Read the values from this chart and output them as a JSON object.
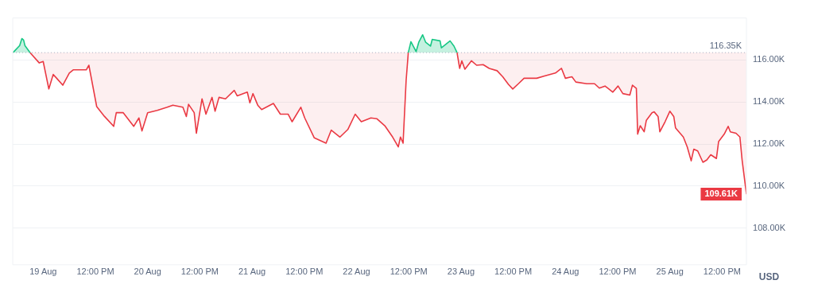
{
  "chart_data": {
    "type": "line",
    "xlim": [
      "--08-18T17:00",
      "--08-25T17:36"
    ],
    "xticks": [
      {
        "value": "--08-19T00:00",
        "label": "19 Aug"
      },
      {
        "value": "--08-19T12:00",
        "label": "12:00 PM"
      },
      {
        "value": "--08-20T00:00",
        "label": "20 Aug"
      },
      {
        "value": "--08-20T12:00",
        "label": "12:00 PM"
      },
      {
        "value": "--08-21T00:00",
        "label": "21 Aug"
      },
      {
        "value": "--08-21T12:00",
        "label": "12:00 PM"
      },
      {
        "value": "--08-22T00:00",
        "label": "22 Aug"
      },
      {
        "value": "--08-22T12:00",
        "label": "12:00 PM"
      },
      {
        "value": "--08-23T00:00",
        "label": "23 Aug"
      },
      {
        "value": "--08-23T12:00",
        "label": "12:00 PM"
      },
      {
        "value": "--08-24T00:00",
        "label": "24 Aug"
      },
      {
        "value": "--08-24T12:00",
        "label": "12:00 PM"
      },
      {
        "value": "--08-25T00:00",
        "label": "25 Aug"
      },
      {
        "value": "--08-25T12:00",
        "label": "12:00 PM"
      }
    ],
    "ylim": [
      106250,
      118000
    ],
    "yticks": [
      {
        "value": 108000,
        "label": "108.00K"
      },
      {
        "value": 110000,
        "label": "110.00K"
      },
      {
        "value": 112000,
        "label": "112.00K"
      },
      {
        "value": 114000,
        "label": "114.00K"
      },
      {
        "value": 116000,
        "label": "116.00K"
      }
    ],
    "ylabel": "USD",
    "grid": "y",
    "legend": false,
    "marker": "none",
    "line_style": "solid",
    "ref_lines": [
      {
        "axis": "y",
        "value": 116350,
        "label": "116.35K",
        "color": "#a6b0c3",
        "line_style": "dotted"
      }
    ],
    "annotations": [
      {
        "text": "109.61K",
        "x": "--08-25T17:36",
        "y": 109610
      }
    ],
    "series": [
      {
        "color": "#16c784",
        "x": [
          "--08-18T17:06",
          "--08-18T18:36",
          "--08-18T19:06",
          "--08-18T19:30",
          "--08-18T19:48",
          "--08-18T21:00",
          "--08-20T16:00",
          "--08-22T11:54",
          "--08-22T12:30",
          "--08-22T13:42",
          "--08-22T14:18",
          "--08-22T15:12",
          "--08-22T15:54",
          "--08-22T17:00",
          "--08-22T17:24",
          "--08-22T19:12",
          "--08-22T19:30",
          "--08-22T21:30",
          "--08-22T22:24",
          "--08-22T23:06"
        ],
        "values": [
          116360,
          116690,
          117020,
          116950,
          116690,
          116350,
          null,
          116350,
          116870,
          116400,
          116840,
          117200,
          116840,
          116660,
          116980,
          116910,
          116580,
          116910,
          116660,
          116350
        ]
      },
      {
        "color": "#ea3943",
        "x": [
          "--08-18T21:00",
          "--08-18T23:06",
          "--08-19T00:00",
          "--08-19T01:18",
          "--08-19T02:18",
          "--08-19T03:06",
          "--08-19T04:30",
          "--08-19T06:00",
          "--08-19T06:54",
          "--08-19T09:54",
          "--08-19T10:30",
          "--08-19T12:18",
          "--08-19T14:06",
          "--08-19T16:12",
          "--08-19T16:48",
          "--08-19T18:24",
          "--08-19T20:48",
          "--08-19T22:00",
          "--08-19T22:42",
          "--08-20T00:00",
          "--08-20T02:12",
          "--08-20T04:30",
          "--08-20T05:48",
          "--08-20T08:06",
          "--08-20T08:54",
          "--08-20T09:24",
          "--08-20T10:42",
          "--08-20T11:12",
          "--08-20T12:30",
          "--08-20T13:24",
          "--08-20T14:48",
          "--08-20T15:30",
          "--08-20T16:24",
          "--08-20T17:54",
          "--08-20T19:54",
          "--08-20T20:36",
          "--08-20T22:54",
          "--08-20T23:30",
          "--08-21T00:12",
          "--08-21T01:18",
          "--08-21T02:12",
          "--08-21T04:54",
          "--08-21T06:30",
          "--08-21T08:18",
          "--08-21T09:12",
          "--08-21T11:12",
          "--08-21T12:06",
          "--08-21T14:18",
          "--08-21T17:00",
          "--08-21T18:12",
          "--08-21T20:12",
          "--08-21T22:00",
          "--08-21T23:42",
          "--08-22T01:06",
          "--08-22T03:18",
          "--08-22T04:42",
          "--08-22T06:30",
          "--08-22T08:18",
          "--08-22T09:36",
          "--08-22T10:06",
          "--08-22T10:42",
          "--08-22T11:24",
          "--08-22T11:54",
          "--08-22T17:00",
          "--08-22T23:06",
          "--08-22T23:42",
          "--08-23T00:12",
          "--08-23T00:54",
          "--08-23T02:24",
          "--08-23T03:36",
          "--08-23T05:06",
          "--08-23T06:30",
          "--08-23T08:18",
          "--08-23T09:36",
          "--08-23T10:54",
          "--08-23T11:54",
          "--08-23T13:12",
          "--08-23T14:30",
          "--08-23T17:24",
          "--08-23T19:12",
          "--08-23T21:42",
          "--08-23T23:06",
          "--08-24T00:00",
          "--08-24T01:30",
          "--08-24T02:24",
          "--08-24T04:54",
          "--08-24T06:42",
          "--08-24T07:48",
          "--08-24T09:06",
          "--08-24T10:54",
          "--08-24T12:06",
          "--08-24T13:12",
          "--08-24T14:48",
          "--08-24T15:24",
          "--08-24T16:18",
          "--08-24T16:36",
          "--08-24T17:12",
          "--08-24T18:06",
          "--08-24T18:36",
          "--08-24T19:54",
          "--08-24T20:24",
          "--08-24T21:18",
          "--08-24T21:42",
          "--08-24T22:54",
          "--08-25T00:00",
          "--08-25T00:54",
          "--08-25T01:18",
          "--08-25T03:06",
          "--08-25T04:00",
          "--08-25T04:54",
          "--08-25T05:30",
          "--08-25T06:24",
          "--08-25T07:36",
          "--08-25T08:30",
          "--08-25T09:24",
          "--08-25T10:42",
          "--08-25T11:12",
          "--08-25T12:30",
          "--08-25T13:24",
          "--08-25T13:54",
          "--08-25T15:12",
          "--08-25T16:06",
          "--08-25T16:36",
          "--08-25T17:36"
        ],
        "values": [
          116350,
          115860,
          115930,
          114620,
          115310,
          115130,
          114800,
          115380,
          115530,
          115530,
          115750,
          113780,
          113310,
          112840,
          113490,
          113490,
          112840,
          113240,
          112620,
          113490,
          113600,
          113750,
          113850,
          113750,
          113310,
          113890,
          113490,
          112510,
          114150,
          113420,
          114220,
          113560,
          114220,
          114150,
          114550,
          114290,
          114470,
          113960,
          114400,
          113850,
          113640,
          113930,
          113420,
          113420,
          113060,
          113750,
          113240,
          112290,
          112040,
          112660,
          112330,
          112690,
          113420,
          113060,
          113240,
          113200,
          112870,
          112330,
          111860,
          112330,
          112040,
          115020,
          116350,
          null,
          116350,
          115600,
          115960,
          115560,
          115960,
          115750,
          115780,
          115600,
          115490,
          115200,
          114840,
          114620,
          114870,
          115130,
          115130,
          115240,
          115380,
          115600,
          115130,
          115200,
          114950,
          114870,
          114870,
          114660,
          114760,
          114470,
          114760,
          114400,
          114330,
          114800,
          114650,
          112470,
          112870,
          112580,
          113130,
          113490,
          113530,
          113310,
          112580,
          113060,
          113560,
          113310,
          112770,
          112330,
          111860,
          111200,
          111750,
          111670,
          111130,
          111240,
          111490,
          111310,
          112110,
          112470,
          112840,
          112580,
          112510,
          112330,
          111240,
          109610
        ]
      }
    ]
  }
}
